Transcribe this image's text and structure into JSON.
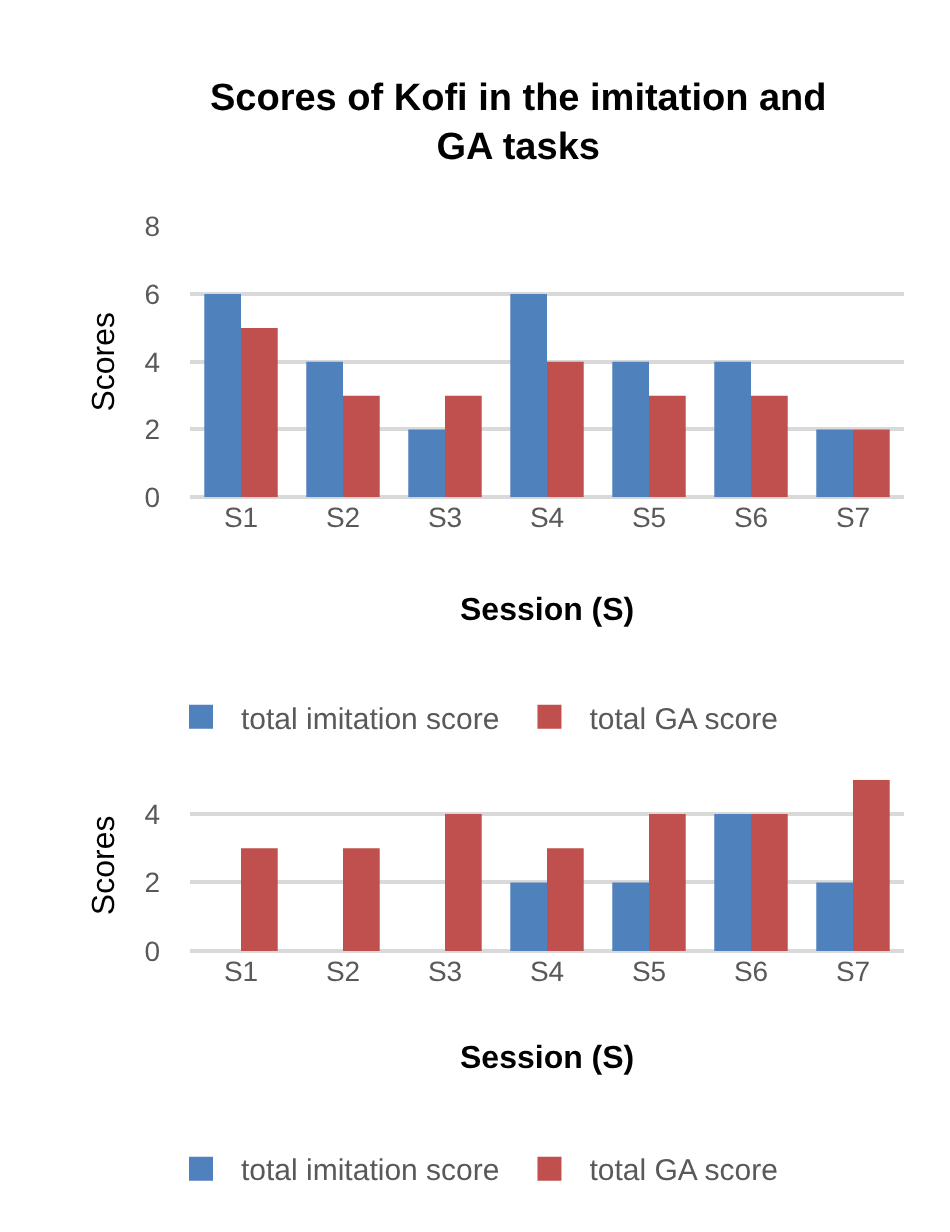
{
  "chart_data": [
    {
      "type": "bar",
      "title": "Scores of Kofi in the imitation and GA tasks",
      "xlabel": "Session (S)",
      "ylabel": "Scores",
      "categories": [
        "S1",
        "S2",
        "S3",
        "S4",
        "S5",
        "S6",
        "S7"
      ],
      "series": [
        {
          "name": "total imitation score",
          "color": "#4f81bd",
          "values": [
            6,
            4,
            2,
            6,
            4,
            4,
            2
          ]
        },
        {
          "name": "total GA score",
          "color": "#c0504d",
          "values": [
            5,
            3,
            3,
            4,
            3,
            3,
            2
          ]
        }
      ],
      "ylim": [
        0,
        8
      ],
      "yticks": [
        0,
        2,
        4,
        6,
        8
      ],
      "grid": "y",
      "legend": "bottom"
    },
    {
      "type": "bar",
      "xlabel": "Session (S)",
      "ylabel": "Scores",
      "categories": [
        "S1",
        "S2",
        "S3",
        "S4",
        "S5",
        "S6",
        "S7"
      ],
      "series": [
        {
          "name": "total imitation score",
          "color": "#4f81bd",
          "values": [
            0,
            0,
            0,
            2,
            2,
            4,
            2
          ]
        },
        {
          "name": "total GA score",
          "color": "#c0504d",
          "values": [
            3,
            3,
            4,
            3,
            4,
            4,
            5
          ]
        }
      ],
      "ylim": [
        0,
        5
      ],
      "yticks": [
        0,
        2,
        4
      ],
      "grid": "y",
      "legend": "bottom"
    }
  ]
}
